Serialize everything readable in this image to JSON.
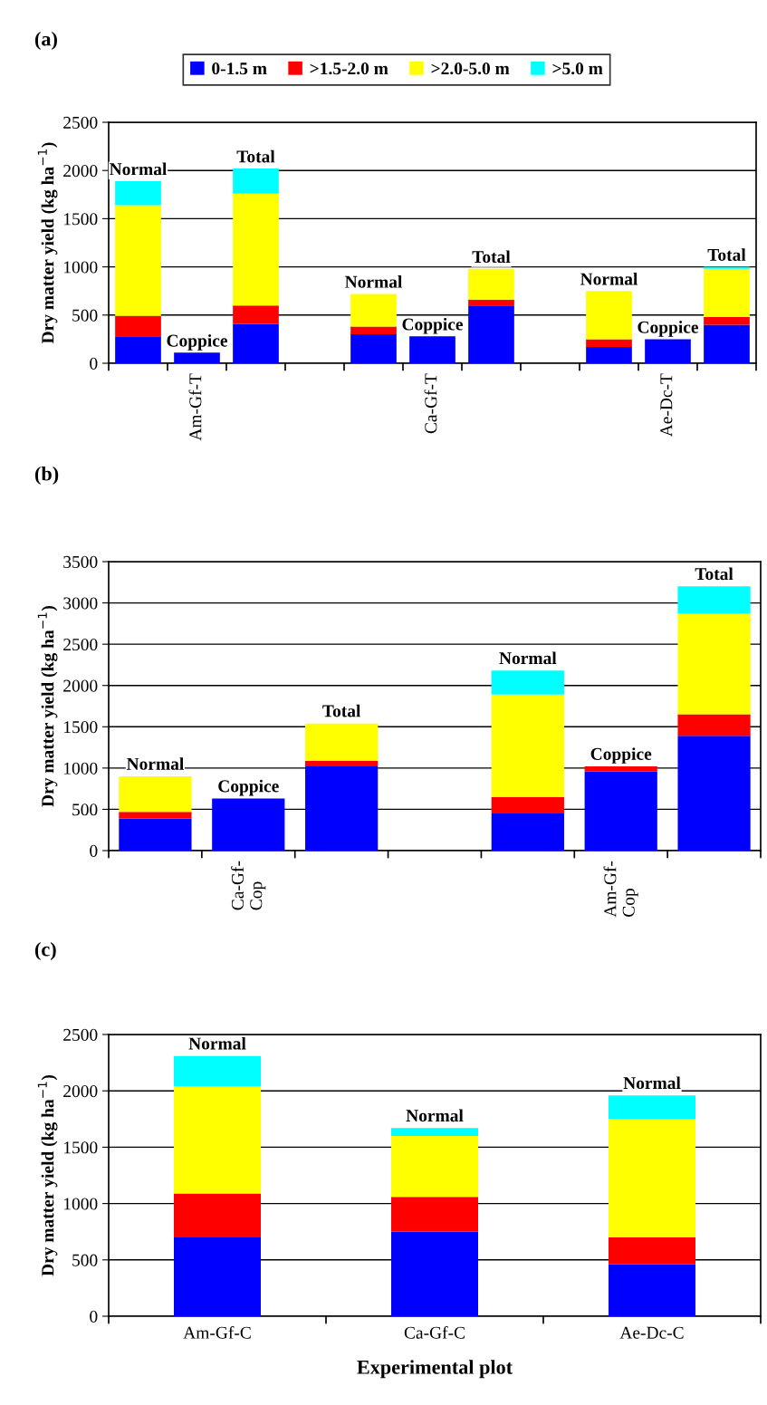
{
  "chart_data": [
    {
      "type": "bar",
      "stacked": true,
      "title": "(a)",
      "ylabel": "Dry matter yield (kg ha$^{−1}$)",
      "categories": [
        null,
        "Am-Gf-T",
        null,
        null,
        null,
        "Ca-Gf-T",
        null,
        null,
        null,
        "Ae-Dc-T",
        null
      ],
      "series": [
        {
          "name": "0-1.5 m",
          "color": "#0000ff",
          "values": [
            280,
            110,
            410,
            null,
            300,
            280,
            600,
            null,
            170,
            250,
            400
          ]
        },
        {
          "name": ">1.5-2.0 m",
          "color": "#ff0000",
          "values": [
            210,
            null,
            190,
            null,
            80,
            null,
            60,
            null,
            80,
            null,
            80
          ]
        },
        {
          "name": ">2.0-5.0 m",
          "color": "#ffff00",
          "values": [
            1150,
            null,
            1160,
            null,
            340,
            null,
            320,
            null,
            500,
            null,
            500
          ]
        },
        {
          "name": ">5.0 m",
          "color": "#00ffff",
          "values": [
            250,
            null,
            260,
            null,
            null,
            null,
            null,
            null,
            null,
            null,
            20
          ]
        }
      ],
      "ylim": [
        0,
        2500
      ],
      "yticks": [
        0,
        500,
        1000,
        1500,
        2000,
        2500
      ],
      "grid": "y",
      "legend": "top",
      "annotations": [
        "Normal",
        "Coppice",
        "Total",
        "Normal",
        "Coppice",
        "Total",
        "Normal",
        "Coppice",
        "Total"
      ]
    },
    {
      "type": "bar",
      "stacked": true,
      "title": "(b)",
      "ylabel": "Dry matter yield (kg ha$^{−1}$)",
      "categories": [
        null,
        "Ca-Gf-\nCop",
        null,
        null,
        null,
        "Am-Gf-\nCop",
        null
      ],
      "series": [
        {
          "color": "#0000ff",
          "values": [
            390,
            630,
            1020,
            null,
            450,
            960,
            1390
          ]
        },
        {
          "color": "#ff0000",
          "values": [
            80,
            null,
            70,
            null,
            200,
            60,
            260
          ]
        },
        {
          "color": "#ffff00",
          "values": [
            430,
            null,
            450,
            null,
            1240,
            null,
            1220
          ]
        },
        {
          "color": "#00ffff",
          "values": [
            null,
            null,
            null,
            null,
            290,
            null,
            330
          ]
        }
      ],
      "ylim": [
        0,
        3500
      ],
      "yticks": [
        0,
        500,
        1000,
        1500,
        2000,
        2500,
        3000,
        3500
      ],
      "grid": "y",
      "annotations": [
        "Normal",
        "Coppice",
        "Total",
        "Normal",
        "Coppice",
        "Total"
      ]
    },
    {
      "type": "bar",
      "stacked": true,
      "title": "(c)",
      "ylabel": "Dry matter yield (kg ha$^{−1}$)",
      "xlabel": "Experimental plot",
      "categories": [
        "Am-Gf-C",
        "Ca-Gf-C",
        "Ae-Dc-C"
      ],
      "series": [
        {
          "color": "#0000ff",
          "values": [
            700,
            750,
            460
          ]
        },
        {
          "color": "#ff0000",
          "values": [
            390,
            310,
            240
          ]
        },
        {
          "color": "#ffff00",
          "values": [
            950,
            540,
            1050
          ]
        },
        {
          "color": "#00ffff",
          "values": [
            270,
            70,
            210
          ]
        }
      ],
      "ylim": [
        0,
        2500
      ],
      "yticks": [
        0,
        500,
        1000,
        1500,
        2000,
        2500
      ],
      "grid": "y",
      "annotations": [
        "Normal",
        "Normal",
        "Normal"
      ]
    }
  ]
}
